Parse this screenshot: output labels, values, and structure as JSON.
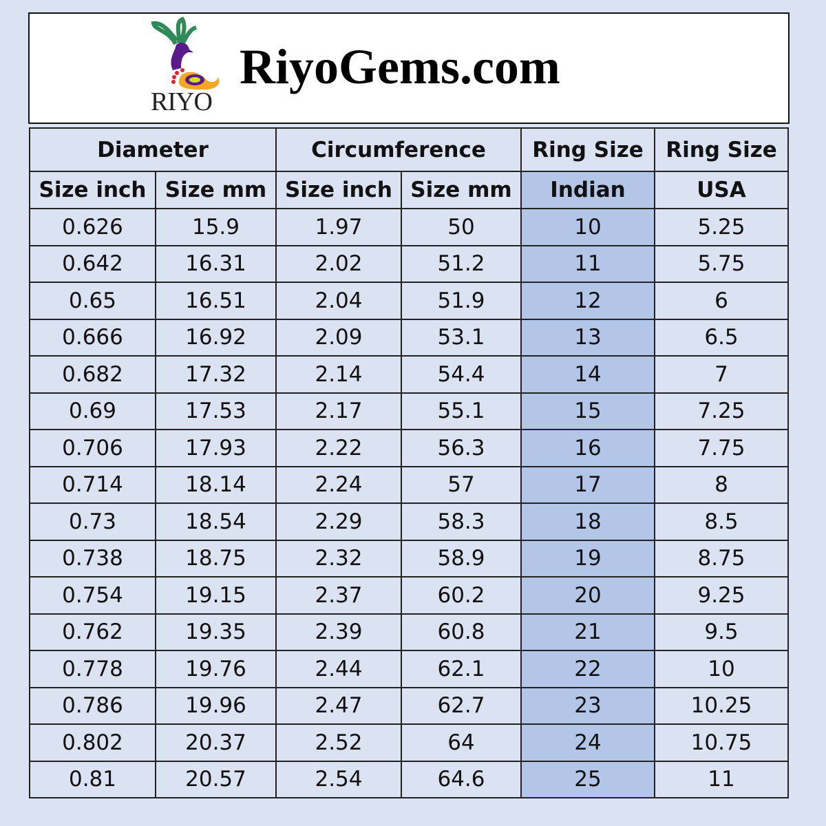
{
  "brand": {
    "logo_text": "RIYO",
    "site": "RiyoGems.com"
  },
  "colors": {
    "background": "#dbe2f2",
    "highlight": "#b4c6e7"
  },
  "table": {
    "group_headers": [
      "Diameter",
      "Circumference",
      "Ring Size",
      "Ring Size"
    ],
    "sub_headers": [
      "Size inch",
      "Size mm",
      "Size inch",
      "Size mm",
      "Indian",
      "USA"
    ],
    "rows": [
      [
        "0.626",
        "15.9",
        "1.97",
        "50",
        "10",
        "5.25"
      ],
      [
        "0.642",
        "16.31",
        "2.02",
        "51.2",
        "11",
        "5.75"
      ],
      [
        "0.65",
        "16.51",
        "2.04",
        "51.9",
        "12",
        "6"
      ],
      [
        "0.666",
        "16.92",
        "2.09",
        "53.1",
        "13",
        "6.5"
      ],
      [
        "0.682",
        "17.32",
        "2.14",
        "54.4",
        "14",
        "7"
      ],
      [
        "0.69",
        "17.53",
        "2.17",
        "55.1",
        "15",
        "7.25"
      ],
      [
        "0.706",
        "17.93",
        "2.22",
        "56.3",
        "16",
        "7.75"
      ],
      [
        "0.714",
        "18.14",
        "2.24",
        "57",
        "17",
        "8"
      ],
      [
        "0.73",
        "18.54",
        "2.29",
        "58.3",
        "18",
        "8.5"
      ],
      [
        "0.738",
        "18.75",
        "2.32",
        "58.9",
        "19",
        "8.75"
      ],
      [
        "0.754",
        "19.15",
        "2.37",
        "60.2",
        "20",
        "9.25"
      ],
      [
        "0.762",
        "19.35",
        "2.39",
        "60.8",
        "21",
        "9.5"
      ],
      [
        "0.778",
        "19.76",
        "2.44",
        "62.1",
        "22",
        "10"
      ],
      [
        "0.786",
        "19.96",
        "2.47",
        "62.7",
        "23",
        "10.25"
      ],
      [
        "0.802",
        "20.37",
        "2.52",
        "64",
        "24",
        "10.75"
      ],
      [
        "0.81",
        "20.57",
        "2.54",
        "64.6",
        "25",
        "11"
      ]
    ]
  }
}
